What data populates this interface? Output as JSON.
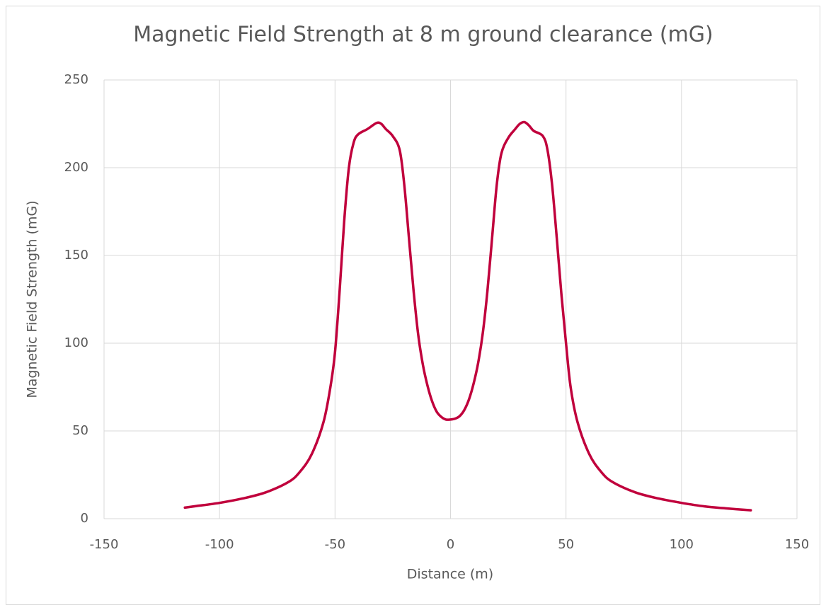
{
  "chart_data": {
    "type": "line",
    "title": "Magnetic Field Strength at 8 m ground clearance (mG)",
    "x_label": "Distance (m)",
    "y_label": "Magnetic Field Strength (mG)",
    "x": [
      -115,
      -110,
      -100,
      -90,
      -80,
      -70,
      -65,
      -60,
      -55,
      -52,
      -50,
      -48,
      -46,
      -44,
      -42,
      -40,
      -36,
      -32,
      -30,
      -28,
      -25,
      -22,
      -20,
      -18,
      -16,
      -14,
      -12,
      -10,
      -8,
      -6,
      -4,
      -2,
      0,
      2,
      4,
      6,
      8,
      10,
      12,
      14,
      16,
      18,
      20,
      22,
      25,
      28,
      30,
      32,
      34,
      36,
      40,
      42,
      44,
      46,
      48,
      50,
      52,
      55,
      60,
      65,
      70,
      80,
      90,
      100,
      110,
      120,
      130
    ],
    "values": [
      6.3,
      7.2,
      9,
      11.5,
      15,
      21,
      27,
      37,
      55,
      75,
      95,
      130,
      170,
      200,
      214,
      219,
      222,
      225.5,
      225,
      222,
      218,
      210,
      190,
      160,
      130,
      105,
      88,
      76,
      67,
      61,
      58,
      56.5,
      56.5,
      57,
      58.5,
      62,
      68,
      77,
      89,
      106,
      130,
      160,
      190,
      208,
      217,
      222,
      225,
      226,
      224,
      221,
      218,
      210,
      190,
      160,
      128,
      100,
      75,
      55,
      37,
      27,
      21,
      15,
      11.5,
      9,
      7,
      5.8,
      4.8
    ],
    "color": "#c0003c",
    "xlim": [
      -150,
      150
    ],
    "xticks": [
      -150,
      -100,
      -50,
      0,
      50,
      100,
      150
    ],
    "ylim": [
      0,
      250
    ],
    "yticks": [
      0,
      50,
      100,
      150,
      200,
      250
    ],
    "grid": true
  }
}
